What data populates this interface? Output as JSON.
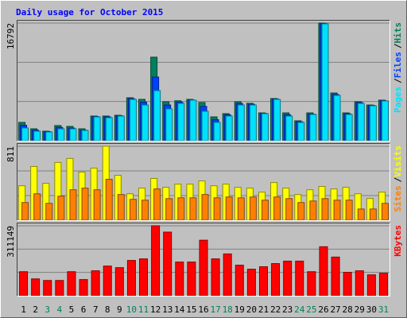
{
  "chart_data": [
    {
      "type": "bar",
      "title": "Daily usage for October 2015",
      "ylim": [
        0,
        16792
      ],
      "yticks": [
        16792
      ],
      "legend_separator": "/",
      "series": [
        {
          "name": "Hits",
          "color": "#00805c",
          "values": [
            2610,
            1700,
            1360,
            2160,
            2040,
            1700,
            3520,
            3520,
            3630,
            6130,
            5900,
            11920,
            5560,
            5700,
            5900,
            5450,
            3400,
            3860,
            5560,
            5330,
            3970,
            6020,
            3970,
            2840,
            3970,
            16792,
            6810,
            3970,
            5560,
            5100,
            5790
          ]
        },
        {
          "name": "Files",
          "color": "#0040ff",
          "values": [
            2200,
            1500,
            1300,
            1900,
            1800,
            1500,
            3450,
            3400,
            3560,
            6000,
            5500,
            9080,
            5100,
            5500,
            5800,
            4900,
            3000,
            3700,
            5300,
            5200,
            3900,
            5950,
            3700,
            2700,
            3800,
            16720,
            6600,
            3850,
            5450,
            5050,
            5700
          ]
        },
        {
          "name": "Pages",
          "color": "#00e0ff",
          "values": [
            1820,
            1360,
            1250,
            1700,
            1700,
            1470,
            3400,
            3290,
            3520,
            5900,
            5100,
            7150,
            4540,
            5330,
            5790,
            4200,
            2610,
            3520,
            5100,
            5100,
            3860,
            5900,
            3520,
            2610,
            3750,
            16680,
            6470,
            3750,
            5330,
            4990,
            5670
          ]
        }
      ]
    },
    {
      "type": "bar",
      "ylim": [
        0,
        811
      ],
      "yticks": [
        811
      ],
      "legend_separator": "/",
      "series": [
        {
          "name": "Visits",
          "color": "#ffff00",
          "values": [
            378,
            589,
            405,
            633,
            677,
            528,
            572,
            811,
            493,
            290,
            352,
            458,
            361,
            396,
            396,
            431,
            378,
            396,
            361,
            352,
            308,
            413,
            352,
            282,
            334,
            370,
            343,
            361,
            290,
            238,
            308
          ]
        },
        {
          "name": "Sites",
          "color": "#ff8000",
          "values": [
            194,
            290,
            185,
            264,
            334,
            352,
            334,
            449,
            282,
            229,
            220,
            343,
            237,
            246,
            246,
            282,
            246,
            255,
            246,
            255,
            220,
            255,
            237,
            194,
            211,
            237,
            220,
            220,
            123,
            123,
            185
          ]
        }
      ]
    },
    {
      "type": "bar",
      "ylim": [
        0,
        311149
      ],
      "yticks": [
        311149
      ],
      "series": [
        {
          "name": "KBytes",
          "color": "#ff0000",
          "values": [
            107000,
            75000,
            68000,
            68000,
            107000,
            72000,
            111000,
            132000,
            125000,
            157000,
            164000,
            311149,
            283000,
            150000,
            150000,
            247000,
            164000,
            186000,
            136000,
            118000,
            129000,
            143000,
            154000,
            154000,
            107000,
            218000,
            172000,
            104000,
            111000,
            93000,
            100000
          ]
        }
      ],
      "categories": [
        "1",
        "2",
        "3",
        "4",
        "5",
        "6",
        "7",
        "8",
        "9",
        "10",
        "11",
        "12",
        "13",
        "14",
        "15",
        "16",
        "17",
        "18",
        "19",
        "20",
        "21",
        "22",
        "23",
        "24",
        "25",
        "26",
        "27",
        "28",
        "29",
        "30",
        "31"
      ],
      "category_colors": [
        "#000000",
        "#000000",
        "#00805c",
        "#00805c",
        "#000000",
        "#000000",
        "#000000",
        "#000000",
        "#000000",
        "#00805c",
        "#00805c",
        "#000000",
        "#000000",
        "#000000",
        "#000000",
        "#000000",
        "#00805c",
        "#00805c",
        "#000000",
        "#000000",
        "#000000",
        "#000000",
        "#000000",
        "#00805c",
        "#00805c",
        "#000000",
        "#000000",
        "#000000",
        "#000000",
        "#000000",
        "#00805c"
      ]
    }
  ]
}
